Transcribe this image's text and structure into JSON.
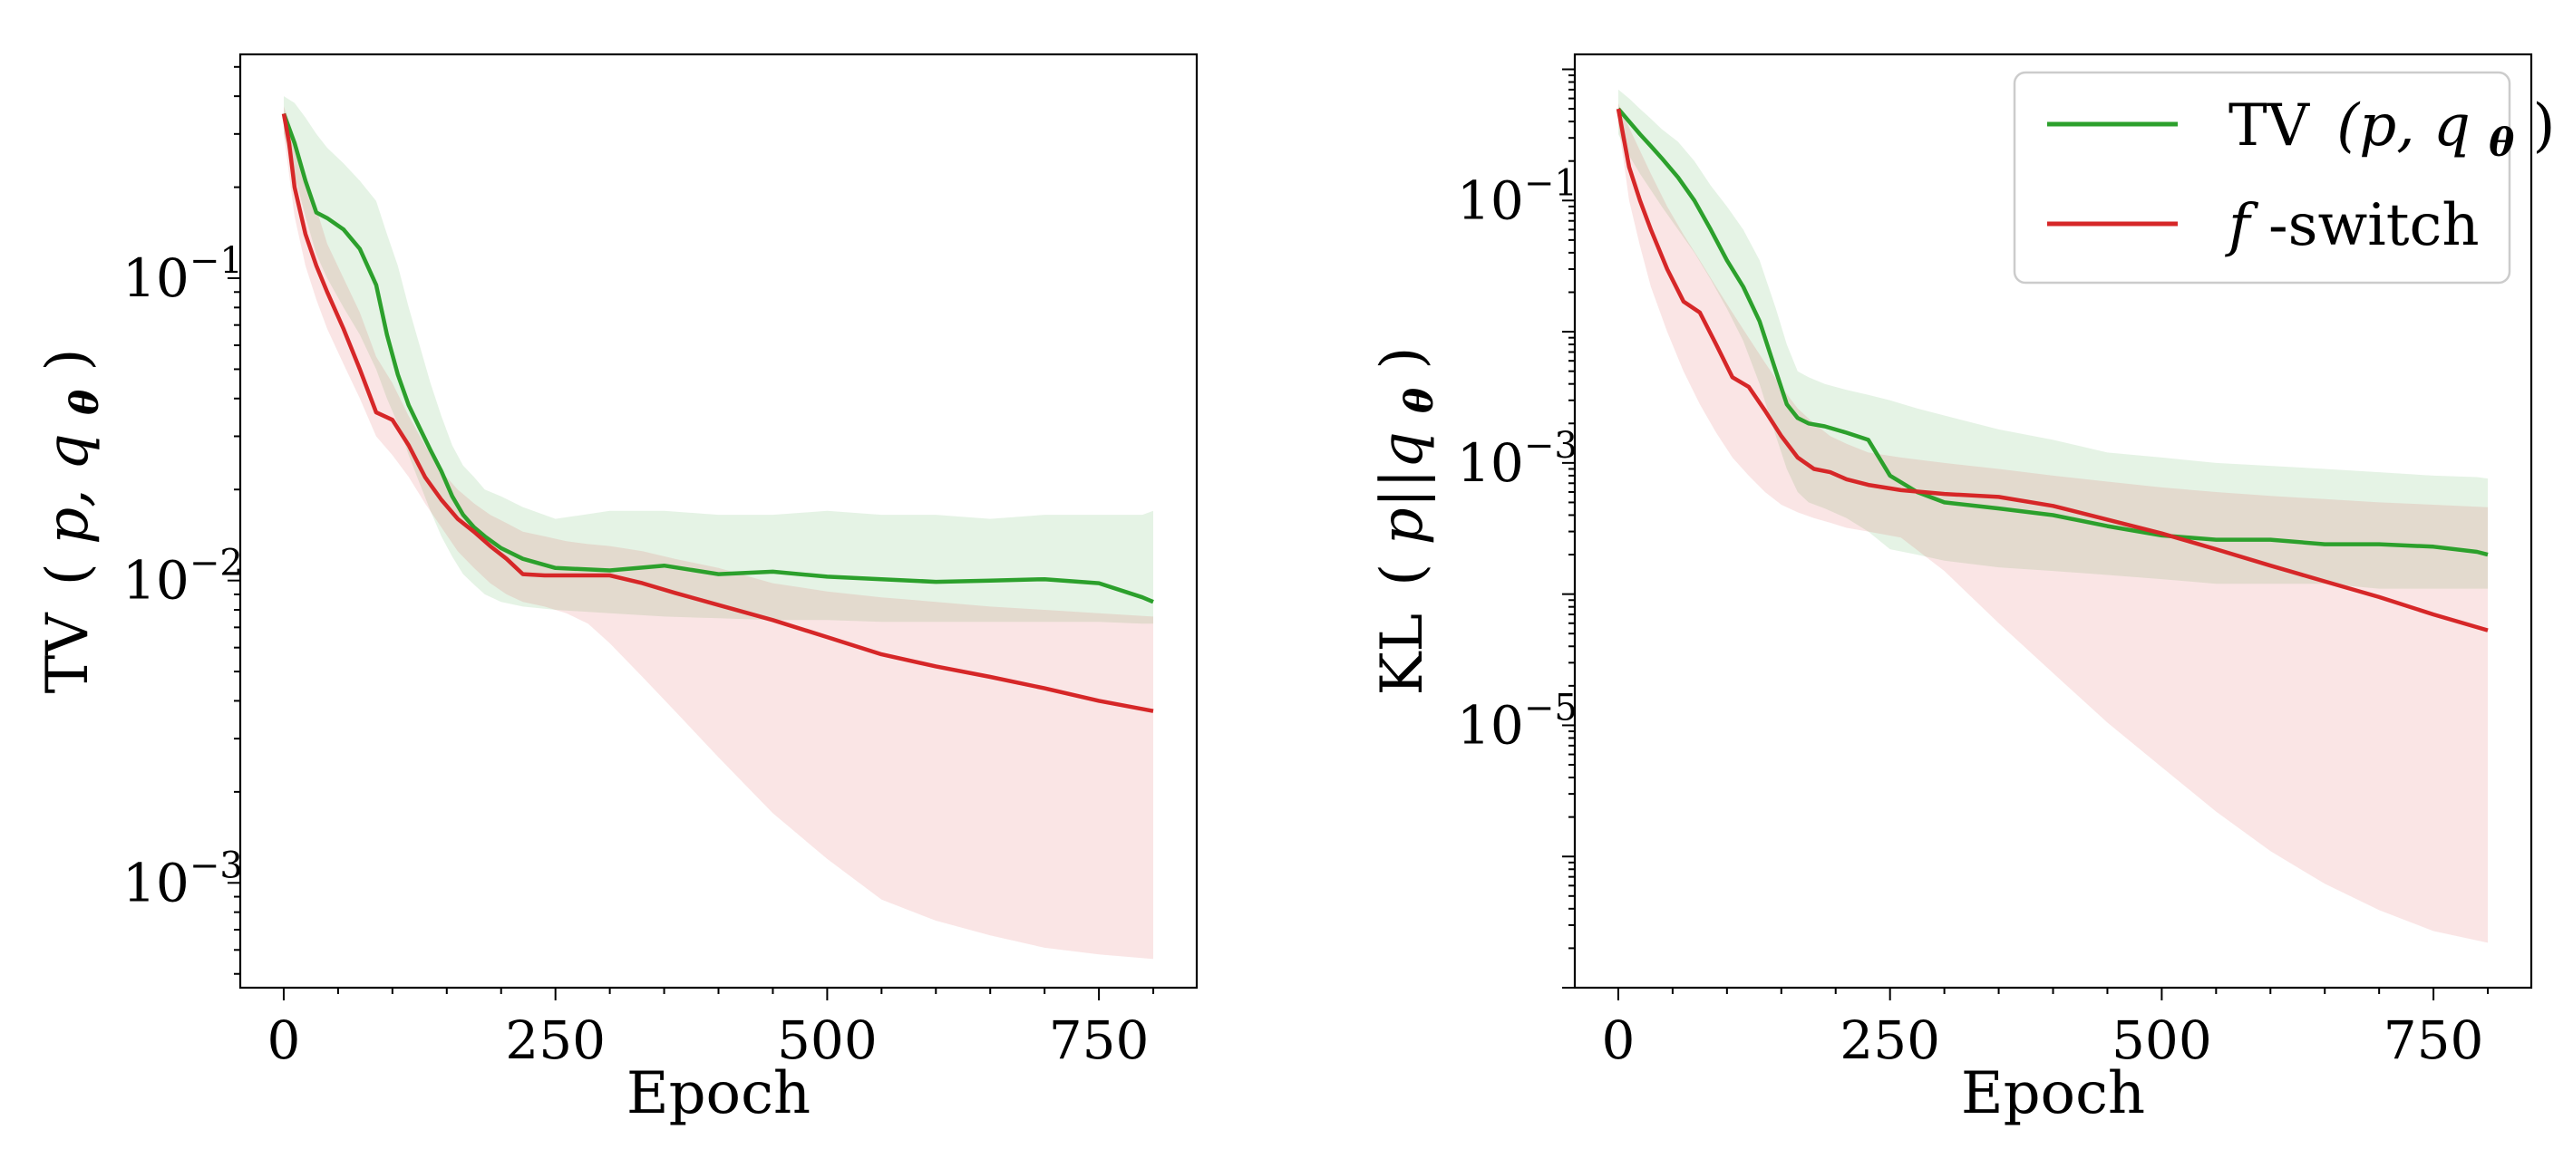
{
  "chart_data": [
    {
      "type": "line",
      "title": "",
      "xlabel": "Epoch",
      "ylabel": "TV (p, q_θ)",
      "ylabel_parts": {
        "main": "TV",
        "open": "(",
        "args": "p, q",
        "sub": "θ",
        "close": ")"
      },
      "yscale": "log",
      "xlim": [
        -40,
        840
      ],
      "ylim": [
        0.00045,
        0.55
      ],
      "xticks": [
        0,
        250,
        500,
        750
      ],
      "xtick_labels": [
        "0",
        "250",
        "500",
        "750"
      ],
      "yticks": [
        0.1,
        0.01,
        0.001
      ],
      "ytick_labels": [
        {
          "base": "10",
          "exp": "−1"
        },
        {
          "base": "10",
          "exp": "−2"
        },
        {
          "base": "10",
          "exp": "−3"
        }
      ],
      "legend": null,
      "series": [
        {
          "name": "TV (p, q_θ)",
          "color": "#2ca02c",
          "x": [
            0,
            10,
            20,
            30,
            40,
            55,
            70,
            85,
            95,
            105,
            115,
            125,
            135,
            145,
            155,
            165,
            175,
            185,
            200,
            220,
            250,
            300,
            350,
            400,
            450,
            500,
            550,
            600,
            650,
            700,
            750,
            790,
            800
          ],
          "y": [
            0.35,
            0.28,
            0.21,
            0.165,
            0.158,
            0.145,
            0.125,
            0.095,
            0.065,
            0.048,
            0.038,
            0.032,
            0.027,
            0.023,
            0.019,
            0.0165,
            0.015,
            0.014,
            0.0128,
            0.0118,
            0.011,
            0.0108,
            0.0112,
            0.0105,
            0.0107,
            0.0103,
            0.0101,
            0.0099,
            0.01,
            0.0101,
            0.0098,
            0.0088,
            0.0085
          ],
          "band_upper": [
            0.4,
            0.38,
            0.34,
            0.3,
            0.27,
            0.24,
            0.21,
            0.18,
            0.14,
            0.11,
            0.08,
            0.06,
            0.045,
            0.035,
            0.028,
            0.024,
            0.022,
            0.02,
            0.019,
            0.0175,
            0.016,
            0.017,
            0.017,
            0.0165,
            0.0165,
            0.017,
            0.0165,
            0.0165,
            0.016,
            0.0165,
            0.0165,
            0.0165,
            0.017
          ],
          "band_lower": [
            0.3,
            0.22,
            0.16,
            0.12,
            0.1,
            0.08,
            0.065,
            0.05,
            0.04,
            0.033,
            0.026,
            0.021,
            0.017,
            0.014,
            0.012,
            0.0105,
            0.0097,
            0.009,
            0.0085,
            0.0082,
            0.008,
            0.0078,
            0.0076,
            0.0075,
            0.0074,
            0.0074,
            0.0073,
            0.0073,
            0.0073,
            0.0073,
            0.0073,
            0.0072,
            0.0072
          ]
        },
        {
          "name": "f-switch",
          "color": "#d62728",
          "x": [
            0,
            5,
            10,
            20,
            30,
            40,
            55,
            70,
            85,
            100,
            115,
            130,
            145,
            160,
            175,
            190,
            205,
            220,
            240,
            260,
            280,
            300,
            330,
            360,
            400,
            450,
            500,
            550,
            600,
            650,
            700,
            750,
            800
          ],
          "y": [
            0.35,
            0.28,
            0.2,
            0.14,
            0.11,
            0.09,
            0.068,
            0.05,
            0.036,
            0.034,
            0.028,
            0.022,
            0.0185,
            0.016,
            0.0145,
            0.013,
            0.0118,
            0.0105,
            0.0104,
            0.0104,
            0.0104,
            0.0104,
            0.0098,
            0.0091,
            0.0083,
            0.0074,
            0.0065,
            0.0057,
            0.0052,
            0.0048,
            0.0044,
            0.004,
            0.0037
          ],
          "band_upper": [
            0.37,
            0.33,
            0.29,
            0.22,
            0.17,
            0.13,
            0.1,
            0.077,
            0.055,
            0.045,
            0.035,
            0.028,
            0.023,
            0.02,
            0.018,
            0.0165,
            0.0155,
            0.0145,
            0.014,
            0.0135,
            0.0132,
            0.013,
            0.0125,
            0.0118,
            0.011,
            0.0098,
            0.0092,
            0.0088,
            0.0085,
            0.0082,
            0.008,
            0.0078,
            0.0076
          ],
          "band_lower": [
            0.3,
            0.22,
            0.16,
            0.11,
            0.085,
            0.068,
            0.052,
            0.04,
            0.03,
            0.026,
            0.022,
            0.018,
            0.015,
            0.0125,
            0.011,
            0.0098,
            0.009,
            0.0085,
            0.0082,
            0.0078,
            0.0072,
            0.0062,
            0.0048,
            0.0037,
            0.0026,
            0.0017,
            0.0012,
            0.00088,
            0.00075,
            0.00067,
            0.00061,
            0.00058,
            0.00056
          ]
        }
      ]
    },
    {
      "type": "line",
      "title": "",
      "xlabel": "Epoch",
      "ylabel": "KL (p||q_θ)",
      "ylabel_parts": {
        "main": "KL",
        "open": "(",
        "args": "p||q",
        "sub": "θ",
        "close": ")"
      },
      "yscale": "log",
      "xlim": [
        -40,
        840
      ],
      "ylim": [
        1e-07,
        1.3
      ],
      "xticks": [
        0,
        250,
        500,
        750
      ],
      "xtick_labels": [
        "0",
        "250",
        "500",
        "750"
      ],
      "yticks": [
        0.1,
        0.001,
        1e-05
      ],
      "ytick_labels": [
        {
          "base": "10",
          "exp": "−1"
        },
        {
          "base": "10",
          "exp": "−3"
        },
        {
          "base": "10",
          "exp": "−5"
        }
      ],
      "legend": "top-right",
      "legend_entries": [
        {
          "label_main": "TV",
          "label_args": "(p, q",
          "label_sub": "θ",
          "label_close": ")",
          "color": "#2ca02c"
        },
        {
          "label_main": "f",
          "label_args": "-switch",
          "label_sub": "",
          "label_close": "",
          "color": "#d62728"
        }
      ],
      "series": [
        {
          "name": "TV (p, q_θ)",
          "color": "#2ca02c",
          "x": [
            0,
            10,
            20,
            30,
            40,
            55,
            70,
            85,
            100,
            115,
            130,
            145,
            155,
            165,
            175,
            190,
            210,
            230,
            250,
            275,
            300,
            350,
            400,
            450,
            500,
            550,
            600,
            650,
            700,
            750,
            790,
            800
          ],
          "y": [
            0.5,
            0.4,
            0.32,
            0.26,
            0.21,
            0.15,
            0.1,
            0.06,
            0.035,
            0.022,
            0.012,
            0.005,
            0.0028,
            0.0022,
            0.002,
            0.0019,
            0.0017,
            0.0015,
            0.0008,
            0.0006,
            0.0005,
            0.00045,
            0.0004,
            0.00033,
            0.00028,
            0.00026,
            0.00026,
            0.00024,
            0.00024,
            0.00023,
            0.00021,
            0.0002
          ],
          "band_upper": [
            0.7,
            0.6,
            0.5,
            0.42,
            0.35,
            0.28,
            0.2,
            0.13,
            0.09,
            0.06,
            0.035,
            0.015,
            0.008,
            0.005,
            0.0045,
            0.004,
            0.0036,
            0.0033,
            0.003,
            0.0026,
            0.0023,
            0.0018,
            0.0015,
            0.0012,
            0.0011,
            0.001,
            0.00095,
            0.0009,
            0.00085,
            0.0008,
            0.00078,
            0.00076
          ],
          "band_lower": [
            0.32,
            0.22,
            0.16,
            0.12,
            0.09,
            0.06,
            0.04,
            0.025,
            0.015,
            0.0085,
            0.004,
            0.0016,
            0.0009,
            0.0006,
            0.0005,
            0.00045,
            0.00038,
            0.0003,
            0.00022,
            0.0002,
            0.00018,
            0.00016,
            0.00015,
            0.00014,
            0.00013,
            0.00012,
            0.00012,
            0.00012,
            0.00011,
            0.00011,
            0.00011,
            0.00011
          ]
        },
        {
          "name": "f-switch",
          "color": "#d62728",
          "x": [
            0,
            5,
            10,
            20,
            30,
            45,
            60,
            75,
            90,
            105,
            120,
            135,
            150,
            165,
            180,
            195,
            210,
            230,
            260,
            300,
            350,
            400,
            450,
            500,
            550,
            600,
            650,
            700,
            750,
            800
          ],
          "y": [
            0.5,
            0.3,
            0.18,
            0.1,
            0.06,
            0.03,
            0.017,
            0.014,
            0.008,
            0.0045,
            0.0038,
            0.0025,
            0.0016,
            0.0011,
            0.0009,
            0.00085,
            0.00075,
            0.00068,
            0.00062,
            0.00058,
            0.00055,
            0.00047,
            0.00037,
            0.00029,
            0.00022,
            0.000165,
            0.000125,
            9.5e-05,
            7e-05,
            5.3e-05
          ],
          "band_upper": [
            0.55,
            0.45,
            0.36,
            0.24,
            0.16,
            0.09,
            0.055,
            0.035,
            0.022,
            0.014,
            0.009,
            0.0058,
            0.0038,
            0.0026,
            0.002,
            0.0016,
            0.0014,
            0.0012,
            0.0011,
            0.001,
            0.0009,
            0.0008,
            0.00072,
            0.00065,
            0.0006,
            0.00056,
            0.00053,
            0.0005,
            0.00048,
            0.00046
          ],
          "band_lower": [
            0.38,
            0.2,
            0.1,
            0.045,
            0.022,
            0.01,
            0.005,
            0.0028,
            0.0017,
            0.0011,
            0.0008,
            0.0006,
            0.00048,
            0.00042,
            0.00038,
            0.00035,
            0.00032,
            0.0003,
            0.00027,
            0.00015,
            6e-05,
            2.5e-05,
            1.05e-05,
            4.8e-06,
            2.2e-06,
            1.1e-06,
            6.2e-07,
            3.9e-07,
            2.7e-07,
            2.2e-07
          ]
        }
      ]
    }
  ]
}
